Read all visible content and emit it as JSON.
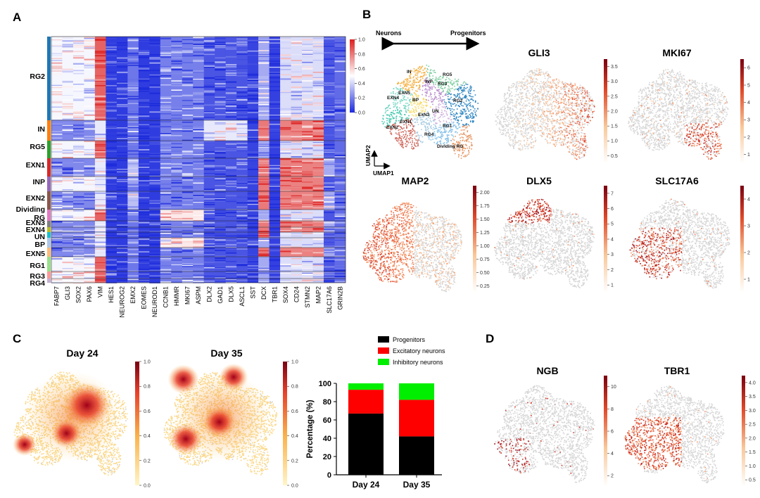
{
  "panels": {
    "a": "A",
    "b": "B",
    "c": "C",
    "d": "D"
  },
  "heatmap": {
    "rows": [
      {
        "name": "RG2",
        "color": "#1f77b4"
      },
      {
        "name": "IN",
        "color": "#ff7f0e"
      },
      {
        "name": "RG5",
        "color": "#2ca02c"
      },
      {
        "name": "EXN1",
        "color": "#d62728"
      },
      {
        "name": "INP",
        "color": "#9467bd"
      },
      {
        "name": "EXN2",
        "color": "#8c564b"
      },
      {
        "name": "Dividing RG",
        "color": "#e377c2"
      },
      {
        "name": "EXN3",
        "color": "#7f7f7f"
      },
      {
        "name": "EXN4",
        "color": "#bcbd22"
      },
      {
        "name": "UN",
        "color": "#17becf"
      },
      {
        "name": "BP",
        "color": "#aec7e8"
      },
      {
        "name": "EXN5",
        "color": "#ffbb78"
      },
      {
        "name": "RG1",
        "color": "#98df8a"
      },
      {
        "name": "RG3",
        "color": "#ff9896"
      },
      {
        "name": "RG4",
        "color": "#c5b0d5"
      }
    ],
    "genes": [
      "FABP7",
      "GLI3",
      "SOX2",
      "PAX6",
      "VIM",
      "HES1",
      "NEUROG2",
      "EMX2",
      "EOMES",
      "NEUROD1",
      "CCNB1",
      "HMMR",
      "MKI67",
      "ASPM",
      "DLX2",
      "GAD1",
      "DLX5",
      "ASCL1",
      "SST",
      "DCX",
      "TBR1",
      "SOX4",
      "CD24",
      "STMN2",
      "MAP2",
      "SLC17A6",
      "GRIN2B"
    ],
    "colorbar_ticks": [
      "1.0",
      "0.8",
      "0.6",
      "0.4",
      "0.2",
      "0.0"
    ]
  },
  "umap": {
    "arrow_left": "Neurons",
    "arrow_right": "Progenitors",
    "axis_x": "UMAP1",
    "axis_y": "UMAP2",
    "cluster_labels": [
      "IN",
      "RG5",
      "INP",
      "RG3",
      "EXN5",
      "EXN4",
      "BP",
      "RG2",
      "EXN1",
      "UN",
      "ExN3",
      "EXN2",
      "RG4",
      "RG1",
      "Dividing RG"
    ]
  },
  "feature_plots": [
    {
      "name": "GLI3",
      "ticks": [
        "3.5",
        "3.0",
        "2.5",
        "2.0",
        "1.5",
        "1.0",
        "0.5"
      ]
    },
    {
      "name": "MKI67",
      "ticks": [
        "6",
        "5",
        "4",
        "3",
        "2",
        "1"
      ]
    },
    {
      "name": "MAP2",
      "ticks": [
        "2.00",
        "1.75",
        "1.50",
        "1.25",
        "1.00",
        "0.75",
        "0.50",
        "0.25"
      ]
    },
    {
      "name": "DLX5",
      "ticks": [
        "7",
        "6",
        "5",
        "4",
        "3",
        "2",
        "1"
      ]
    },
    {
      "name": "SLC17A6",
      "ticks": [
        "4",
        "3",
        "2",
        "1"
      ]
    }
  ],
  "density": {
    "plots": [
      {
        "name": "Day 24"
      },
      {
        "name": "Day 35"
      }
    ],
    "ticks": [
      "1.0",
      "0.8",
      "0.6",
      "0.4",
      "0.2",
      "0.0"
    ]
  },
  "chart_data": {
    "type": "bar",
    "stacked": true,
    "categories": [
      "Day 24",
      "Day 35"
    ],
    "series": [
      {
        "name": "Progenitors",
        "color": "#000000",
        "values": [
          67,
          42
        ]
      },
      {
        "name": "Excitatory neurons",
        "color": "#ff0000",
        "values": [
          26,
          40
        ]
      },
      {
        "name": "Inhibitory neurons",
        "color": "#00ee00",
        "values": [
          7,
          18
        ]
      }
    ],
    "ylabel": "Percentage (%)",
    "ylim": [
      0,
      100
    ],
    "yticks": [
      "0",
      "20",
      "40",
      "60",
      "80",
      "100"
    ]
  },
  "d_plots": [
    {
      "name": "NGB",
      "ticks": [
        "10",
        "8",
        "6",
        "4",
        "2"
      ]
    },
    {
      "name": "TBR1",
      "ticks": [
        "4.0",
        "3.5",
        "3.0",
        "2.5",
        "2.0",
        "1.5",
        "1.0",
        "0.5"
      ]
    }
  ]
}
